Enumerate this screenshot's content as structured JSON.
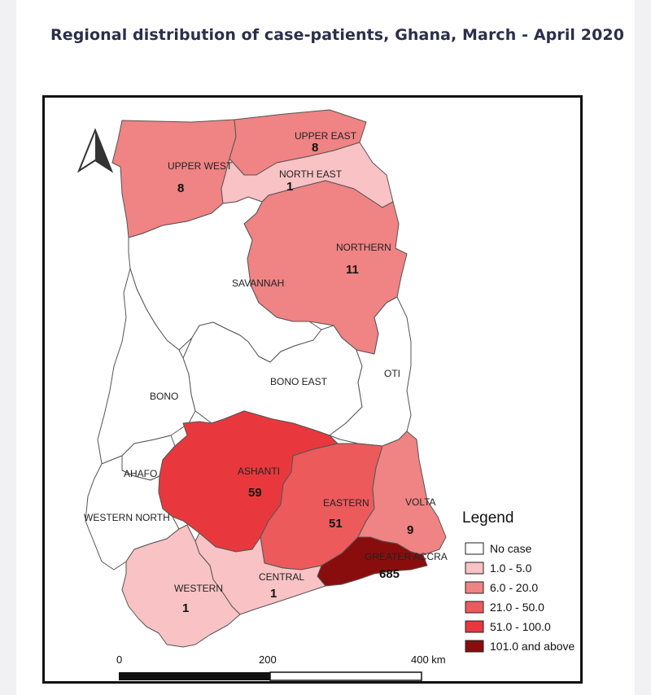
{
  "title": "Regional distribution of case-patients, Ghana, March - April 2020",
  "colors": {
    "no_case": "#ffffff",
    "c1_5": "#f9c2c4",
    "c6_20": "#f08383",
    "c21_50": "#ec5a5c",
    "c51_100": "#e8383d",
    "c101_plus": "#8a0d0d"
  },
  "north_arrow": "north-arrow-icon",
  "regions": {
    "upper_west": {
      "name": "UPPER WEST",
      "count": "8"
    },
    "upper_east": {
      "name": "UPPER EAST",
      "count": "8"
    },
    "north_east": {
      "name": "NORTH EAST",
      "count": "1"
    },
    "northern": {
      "name": "NORTHERN",
      "count": "11"
    },
    "savannah": {
      "name": "SAVANNAH"
    },
    "bono_east": {
      "name": "BONO EAST"
    },
    "oti": {
      "name": "OTI"
    },
    "bono": {
      "name": "BONO"
    },
    "ahafo": {
      "name": "AHAFO"
    },
    "ashanti": {
      "name": "ASHANTI",
      "count": "59"
    },
    "eastern": {
      "name": "EASTERN",
      "count": "51"
    },
    "volta": {
      "name": "VOLTA",
      "count": "9"
    },
    "western_north": {
      "name": "WESTERN NORTH"
    },
    "greater_accra": {
      "name": "GREATER ACCRA",
      "count": "685"
    },
    "central": {
      "name": "CENTRAL",
      "count": "1"
    },
    "western": {
      "name": "WESTERN",
      "count": "1"
    }
  },
  "legend": {
    "title": "Legend",
    "items": [
      {
        "label": "No case",
        "color": "#ffffff"
      },
      {
        "label": "1.0 - 5.0",
        "color": "#f9c2c4"
      },
      {
        "label": "6.0 - 20.0",
        "color": "#f08383"
      },
      {
        "label": "21.0 - 50.0",
        "color": "#ec5a5c"
      },
      {
        "label": "51.0 - 100.0",
        "color": "#e8383d"
      },
      {
        "label": "101.0  and above",
        "color": "#8a0d0d"
      }
    ]
  },
  "scale_bar": {
    "label_start": "0",
    "label_mid": "200",
    "label_end": "400 km"
  }
}
